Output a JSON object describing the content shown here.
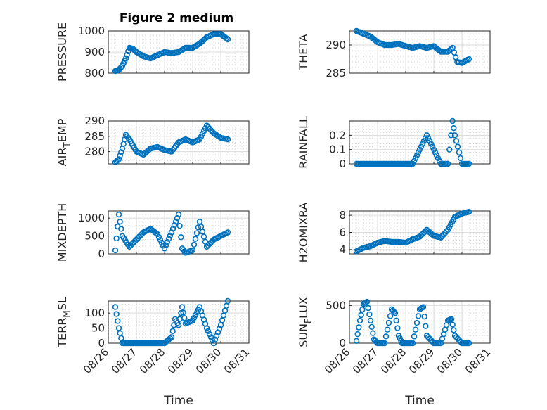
{
  "figure_title": "Figure 2 medium",
  "colors": {
    "marker": "#0072BD",
    "axis": "#262626",
    "grid": "#dcdcdc"
  },
  "x_axis": {
    "label": "Time",
    "tick_labels": [
      "08/26",
      "08/27",
      "08/28",
      "08/29",
      "08/30",
      "08/31"
    ],
    "range": [
      "08/26",
      "08/31"
    ]
  },
  "chart_data": [
    {
      "type": "scatter",
      "title": "Figure 2 medium",
      "ylabel": "PRESSURE",
      "ylabel_sub": null,
      "ylim": [
        800,
        1000
      ],
      "yticks": [
        800,
        900,
        1000
      ],
      "grid": "on, major + minor",
      "x": [
        "08/26 06:00",
        "08/26 09:00",
        "08/26 12:00",
        "08/26 15:00",
        "08/26 18:00",
        "08/26 21:00",
        "08/27 00:00",
        "08/27 06:00",
        "08/27 12:00",
        "08/27 18:00",
        "08/28 00:00",
        "08/28 06:00",
        "08/28 12:00",
        "08/28 18:00",
        "08/29 00:00",
        "08/29 06:00",
        "08/29 12:00",
        "08/29 18:00",
        "08/30 00:00",
        "08/30 06:00"
      ],
      "values": [
        810,
        815,
        835,
        870,
        920,
        915,
        900,
        880,
        870,
        885,
        900,
        895,
        900,
        920,
        920,
        940,
        970,
        985,
        985,
        960
      ]
    },
    {
      "type": "scatter",
      "ylabel": "THETA",
      "ylabel_sub": null,
      "ylim": [
        285,
        292.5
      ],
      "yticks": [
        285,
        290
      ],
      "grid": "on, major + minor",
      "x": [
        "08/26 06:00",
        "08/26 12:00",
        "08/26 18:00",
        "08/27 00:00",
        "08/27 06:00",
        "08/27 12:00",
        "08/27 18:00",
        "08/28 00:00",
        "08/28 06:00",
        "08/28 12:00",
        "08/28 18:00",
        "08/29 00:00",
        "08/29 06:00",
        "08/29 12:00",
        "08/29 16:00",
        "08/29 20:00",
        "08/30 00:00",
        "08/30 06:00"
      ],
      "values": [
        292.5,
        292,
        291.5,
        290.5,
        290,
        290,
        290.2,
        289.8,
        289.5,
        289.8,
        289.5,
        289.8,
        288.8,
        288.8,
        289.5,
        287.0,
        286.8,
        287.5
      ]
    },
    {
      "type": "scatter",
      "ylabel": "AIR",
      "ylabel_sub": "T",
      "ylabel_suffix": "EMP",
      "ylim": [
        276,
        290
      ],
      "yticks": [
        280,
        285,
        290
      ],
      "grid": "on, major + minor",
      "x": [
        "08/26 06:00",
        "08/26 09:00",
        "08/26 12:00",
        "08/26 15:00",
        "08/26 18:00",
        "08/26 21:00",
        "08/27 00:00",
        "08/27 06:00",
        "08/27 12:00",
        "08/27 18:00",
        "08/28 00:00",
        "08/28 06:00",
        "08/28 12:00",
        "08/28 18:00",
        "08/29 00:00",
        "08/29 06:00",
        "08/29 12:00",
        "08/29 18:00",
        "08/30 00:00",
        "08/30 06:00"
      ],
      "values": [
        276.5,
        277.5,
        281,
        285.5,
        284,
        282,
        280,
        279,
        281,
        281.5,
        280.5,
        280,
        283,
        284,
        283,
        284,
        288.5,
        286,
        284.5,
        284
      ]
    },
    {
      "type": "scatter",
      "ylabel": "RAINFALL",
      "ylabel_sub": null,
      "ylim": [
        0,
        0.3
      ],
      "yticks": [
        0,
        0.1,
        0.2
      ],
      "grid": "on, major + minor",
      "x": [
        "08/26 06:00",
        "08/26 18:00",
        "08/27 06:00",
        "08/27 18:00",
        "08/28 06:00",
        "08/28 12:00",
        "08/28 18:00",
        "08/29 06:00",
        "08/29 12:00",
        "08/29 16:00",
        "08/29 18:00",
        "08/30 00:00",
        "08/30 06:00"
      ],
      "values": [
        0,
        0,
        0,
        0,
        0,
        0.1,
        0.2,
        0,
        0,
        0.3,
        0.2,
        0,
        0
      ]
    },
    {
      "type": "scatter",
      "ylabel": "MIXDEPTH",
      "ylabel_sub": null,
      "ylim": [
        0,
        1200
      ],
      "yticks": [
        0,
        500,
        1000
      ],
      "grid": "on, major + minor",
      "x": [
        "08/26 06:00",
        "08/26 09:00",
        "08/26 12:00",
        "08/26 18:00",
        "08/27 00:00",
        "08/27 06:00",
        "08/27 12:00",
        "08/27 18:00",
        "08/28 00:00",
        "08/28 06:00",
        "08/28 12:00",
        "08/28 15:00",
        "08/28 18:00",
        "08/29 00:00",
        "08/29 06:00",
        "08/29 12:00",
        "08/29 18:00",
        "08/30 00:00",
        "08/30 06:00"
      ],
      "values": [
        100,
        1100,
        500,
        200,
        400,
        600,
        700,
        550,
        150,
        600,
        1100,
        150,
        30,
        100,
        900,
        200,
        400,
        500,
        600
      ]
    },
    {
      "type": "scatter",
      "ylabel": "H2OMIXRA",
      "ylabel_sub": null,
      "ylim": [
        3.5,
        8.5
      ],
      "yticks": [
        4,
        6,
        8
      ],
      "grid": "on, major + minor",
      "x": [
        "08/26 06:00",
        "08/26 12:00",
        "08/26 18:00",
        "08/27 00:00",
        "08/27 06:00",
        "08/27 12:00",
        "08/27 18:00",
        "08/28 00:00",
        "08/28 06:00",
        "08/28 12:00",
        "08/28 18:00",
        "08/29 00:00",
        "08/29 06:00",
        "08/29 12:00",
        "08/29 18:00",
        "08/30 00:00",
        "08/30 06:00"
      ],
      "values": [
        3.8,
        4.2,
        4.4,
        4.8,
        5.0,
        4.9,
        4.9,
        4.8,
        5.2,
        5.5,
        6.3,
        5.6,
        5.4,
        6.3,
        7.8,
        8.2,
        8.4
      ]
    },
    {
      "type": "scatter",
      "ylabel": "TERR",
      "ylabel_sub": "M",
      "ylabel_suffix": "SL",
      "ylim": [
        0,
        140
      ],
      "yticks": [
        0,
        50,
        100
      ],
      "grid": "on, major + minor",
      "x": [
        "08/26 06:00",
        "08/26 09:00",
        "08/26 12:00",
        "08/27 00:00",
        "08/27 12:00",
        "08/28 00:00",
        "08/28 06:00",
        "08/28 09:00",
        "08/28 12:00",
        "08/28 15:00",
        "08/28 18:00",
        "08/29 00:00",
        "08/29 06:00",
        "08/29 12:00",
        "08/29 18:00",
        "08/30 00:00",
        "08/30 06:00"
      ],
      "values": [
        120,
        50,
        0,
        0,
        0,
        0,
        20,
        80,
        60,
        120,
        65,
        75,
        120,
        50,
        0,
        60,
        140
      ]
    },
    {
      "type": "scatter",
      "ylabel": "SUN",
      "ylabel_sub": "F",
      "ylabel_suffix": "LUX",
      "ylim": [
        0,
        560
      ],
      "yticks": [
        0,
        500
      ],
      "grid": "on, major + minor",
      "x": [
        "08/26 06:00",
        "08/26 09:00",
        "08/26 12:00",
        "08/26 15:00",
        "08/26 18:00",
        "08/26 21:00",
        "08/27 00:00",
        "08/27 06:00",
        "08/27 12:00",
        "08/27 15:00",
        "08/27 18:00",
        "08/27 21:00",
        "08/28 00:00",
        "08/28 06:00",
        "08/28 12:00",
        "08/28 15:00",
        "08/28 18:00",
        "08/29 00:00",
        "08/29 06:00",
        "08/29 12:00",
        "08/29 15:00",
        "08/29 18:00",
        "08/30 00:00",
        "08/30 06:00"
      ],
      "values": [
        30,
        300,
        520,
        550,
        300,
        50,
        0,
        0,
        450,
        400,
        100,
        0,
        0,
        0,
        450,
        480,
        100,
        0,
        0,
        300,
        320,
        100,
        0,
        0
      ]
    }
  ]
}
